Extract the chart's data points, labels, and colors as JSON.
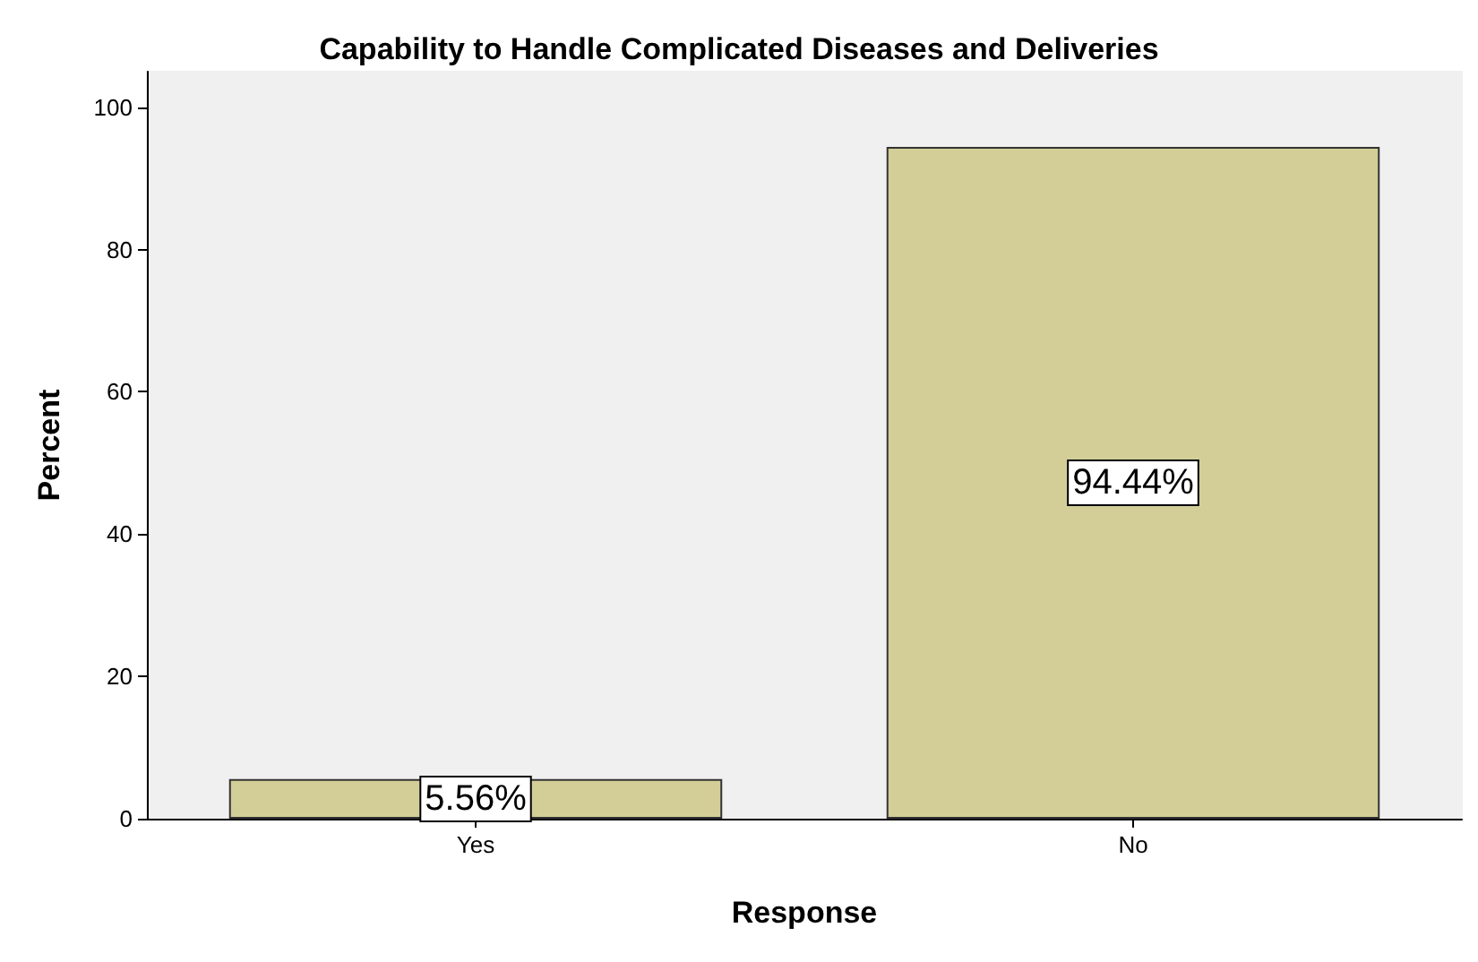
{
  "chart_data": {
    "type": "bar",
    "title": "Capability to Handle Complicated Diseases and Deliveries",
    "xlabel": "Response",
    "ylabel": "Percent",
    "categories": [
      "Yes",
      "No"
    ],
    "values": [
      5.56,
      94.44
    ],
    "color": "#d3ce97",
    "value_labels": [
      "5.56%",
      "94.44%"
    ],
    "ylim": [
      0,
      105
    ],
    "yticks": [
      0,
      20,
      40,
      60,
      80,
      100
    ],
    "grid": false
  }
}
